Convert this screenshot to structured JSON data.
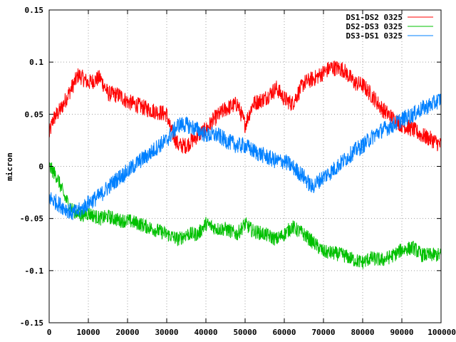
{
  "chart_data": {
    "type": "line",
    "title": "",
    "xlabel": "",
    "ylabel": "micron",
    "xlim": [
      0,
      100000
    ],
    "ylim": [
      -0.15,
      0.15
    ],
    "grid": true,
    "legend_position": "top-right",
    "x_ticks": [
      "0",
      "10000",
      "20000",
      "30000",
      "40000",
      "50000",
      "60000",
      "70000",
      "80000",
      "90000",
      "100000"
    ],
    "y_ticks": [
      "-0.15",
      "-0.1",
      "-0.05",
      "0",
      "0.05",
      "0.1",
      "0.15"
    ],
    "series": [
      {
        "name": "DS1-DS2 0325",
        "color": "#ff0000",
        "noise_amplitude": 0.008,
        "x": [
          0,
          1000,
          3000,
          5000,
          7500,
          10000,
          13000,
          15000,
          18000,
          20000,
          23000,
          25000,
          28000,
          30000,
          31000,
          33000,
          35000,
          38000,
          40000,
          42000,
          45000,
          48000,
          50000,
          52000,
          55000,
          58000,
          60000,
          62000,
          65000,
          68000,
          70000,
          72000,
          75000,
          78000,
          80000,
          83000,
          85000,
          88000,
          90000,
          93000,
          95000,
          98000,
          100000
        ],
        "y": [
          0.03,
          0.045,
          0.055,
          0.07,
          0.088,
          0.08,
          0.085,
          0.07,
          0.068,
          0.062,
          0.058,
          0.055,
          0.052,
          0.05,
          0.035,
          0.02,
          0.02,
          0.03,
          0.035,
          0.045,
          0.055,
          0.06,
          0.04,
          0.06,
          0.065,
          0.075,
          0.065,
          0.06,
          0.08,
          0.085,
          0.09,
          0.095,
          0.093,
          0.08,
          0.078,
          0.065,
          0.055,
          0.045,
          0.04,
          0.035,
          0.03,
          0.025,
          0.02
        ]
      },
      {
        "name": "DS2-DS3 0325",
        "color": "#00c000",
        "noise_amplitude": 0.007,
        "x": [
          0,
          2000,
          4000,
          6000,
          8000,
          10000,
          13000,
          15000,
          18000,
          20000,
          23000,
          25000,
          28000,
          30000,
          33000,
          35000,
          38000,
          40000,
          43000,
          45000,
          48000,
          50000,
          52000,
          55000,
          58000,
          60000,
          62000,
          65000,
          68000,
          70000,
          72000,
          75000,
          78000,
          80000,
          82000,
          85000,
          88000,
          90000,
          93000,
          95000,
          98000,
          100000
        ],
        "y": [
          0.0,
          -0.01,
          -0.03,
          -0.042,
          -0.047,
          -0.045,
          -0.05,
          -0.048,
          -0.052,
          -0.052,
          -0.055,
          -0.058,
          -0.062,
          -0.065,
          -0.07,
          -0.065,
          -0.065,
          -0.055,
          -0.06,
          -0.06,
          -0.065,
          -0.055,
          -0.062,
          -0.065,
          -0.07,
          -0.065,
          -0.058,
          -0.065,
          -0.075,
          -0.082,
          -0.083,
          -0.085,
          -0.09,
          -0.092,
          -0.088,
          -0.09,
          -0.085,
          -0.08,
          -0.078,
          -0.085,
          -0.085,
          -0.085
        ]
      },
      {
        "name": "DS3-DS1 0325",
        "color": "#0080ff",
        "noise_amplitude": 0.008,
        "x": [
          0,
          2000,
          4000,
          6000,
          8000,
          10000,
          13000,
          15000,
          18000,
          20000,
          23000,
          25000,
          28000,
          30000,
          33000,
          35000,
          38000,
          40000,
          43000,
          45000,
          48000,
          50000,
          52000,
          55000,
          58000,
          60000,
          62000,
          65000,
          67000,
          70000,
          72000,
          75000,
          78000,
          80000,
          83000,
          85000,
          88000,
          90000,
          93000,
          95000,
          98000,
          100000
        ],
        "y": [
          -0.03,
          -0.035,
          -0.04,
          -0.045,
          -0.042,
          -0.035,
          -0.028,
          -0.02,
          -0.01,
          -0.005,
          0.005,
          0.01,
          0.02,
          0.025,
          0.04,
          0.04,
          0.035,
          0.03,
          0.03,
          0.025,
          0.02,
          0.02,
          0.015,
          0.01,
          0.005,
          0.005,
          0.0,
          -0.01,
          -0.02,
          -0.01,
          -0.005,
          0.005,
          0.015,
          0.02,
          0.03,
          0.035,
          0.04,
          0.045,
          0.05,
          0.055,
          0.06,
          0.065
        ]
      }
    ]
  }
}
